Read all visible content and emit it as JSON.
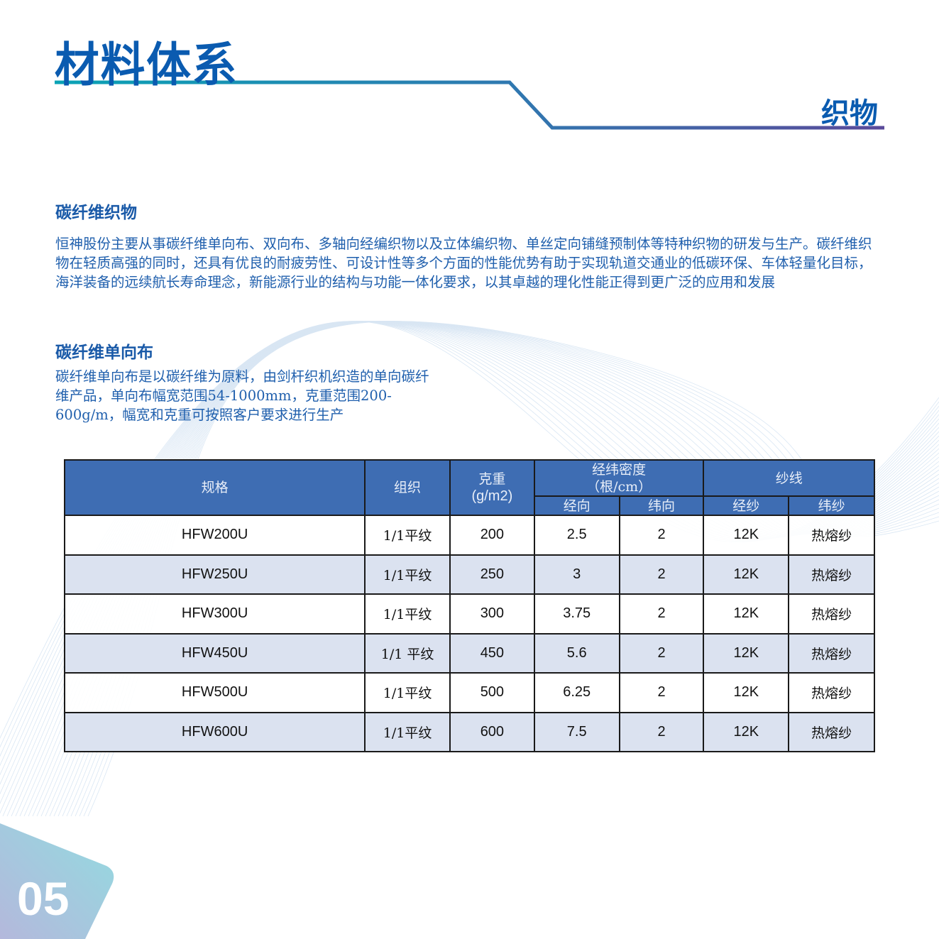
{
  "header": {
    "title": "材料体系",
    "section": "织物"
  },
  "intro": {
    "heading": "碳纤维织物",
    "text": "恒神股份主要从事碳纤维单向布、双向布、多轴向经编织物以及立体编织物、单丝定向铺缝预制体等特种织物的研发与生产。碳纤维织物在轻质高强的同时，还具有优良的耐疲劳性、可设计性等多个方面的性能优势有助于实现轨道交通业的低碳环保、车体轻量化目标，海洋装备的远续航长寿命理念，新能源行业的结构与功能一体化要求，以其卓越的理化性能正得到更广泛的应用和发展"
  },
  "unidirectional": {
    "heading": "碳纤维单向布",
    "text": "碳纤维单向布是以碳纤维为原料，由剑杆织机织造的单向碳纤维产品，单向布幅宽范围54-1000mm，克重范围200-600g/m，幅宽和克重可按照客户要求进行生产"
  },
  "table": {
    "headers": {
      "spec": "规格",
      "weave": "组织",
      "weight": "克重",
      "weight_unit": "(g/m2)",
      "density": "经纬密度",
      "density_unit": "（根/cm）",
      "warp_dir": "经向",
      "weft_dir": "纬向",
      "yarn": "纱线",
      "warp_yarn": "经纱",
      "weft_yarn": "纬纱"
    },
    "rows": [
      [
        "HFW200U",
        "1/1平纹",
        "200",
        "2.5",
        "2",
        "12K",
        "热熔纱"
      ],
      [
        "HFW250U",
        "1/1平纹",
        "250",
        "3",
        "2",
        "12K",
        "热熔纱"
      ],
      [
        "HFW300U",
        "1/1平纹",
        "300",
        "3.75",
        "2",
        "12K",
        "热熔纱"
      ],
      [
        "HFW450U",
        "1/1 平纹",
        "450",
        "5.6",
        "2",
        "12K",
        "热熔纱"
      ],
      [
        "HFW500U",
        "1/1平纹",
        "500",
        "6.25",
        "2",
        "12K",
        "热熔纱"
      ],
      [
        "HFW600U",
        "1/1平纹",
        "600",
        "7.5",
        "2",
        "12K",
        "热熔纱"
      ]
    ]
  },
  "page_number": "05",
  "colors": {
    "brand": "#0a5bb0",
    "header_bg": "#3e6db3",
    "alt_row": "#dbe2f0"
  }
}
